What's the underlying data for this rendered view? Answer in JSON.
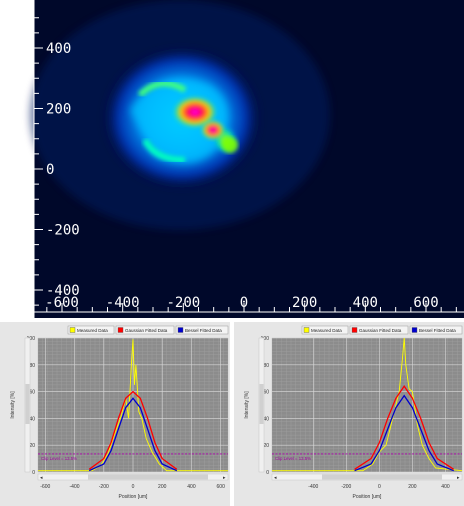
{
  "beam_profile": {
    "x_axis": {
      "labels": [
        "-600",
        "-400",
        "-200",
        "0",
        "200",
        "400",
        "600"
      ],
      "values": [
        -600,
        -400,
        -200,
        0,
        200,
        400,
        600
      ]
    },
    "y_axis": {
      "labels": [
        "400",
        "200",
        "0",
        "-200",
        "-400"
      ],
      "values": [
        400,
        200,
        0,
        -200,
        -400
      ]
    },
    "colors": {
      "background": "#00082a",
      "tick": "#ffffff"
    }
  },
  "legend": {
    "measured": "Measured Data",
    "gaussian": "Gaussian Fitted Data",
    "bessel": "Bessel Fitted Data"
  },
  "chart_data": [
    {
      "type": "line",
      "xlabel": "Position [um]",
      "ylabel": "Intensity [%]",
      "xlim": [
        -650,
        650
      ],
      "ylim": [
        0,
        100
      ],
      "x_ticks": [
        "-600",
        "-400",
        "-200",
        "0",
        "200",
        "400",
        "600"
      ],
      "y_ticks": [
        "0",
        "20",
        "40",
        "60",
        "80",
        "100"
      ],
      "clip_level_label": "Clip Level = 13.5%",
      "clip_level": 13.5,
      "series": [
        {
          "name": "Measured Data",
          "color": "#ffff00",
          "x": [
            -650,
            -280,
            -220,
            -170,
            -120,
            -80,
            -50,
            -30,
            -10,
            0,
            10,
            20,
            40,
            60,
            90,
            130,
            180,
            230,
            650
          ],
          "y": [
            1,
            1,
            5,
            14,
            30,
            42,
            55,
            40,
            82,
            99,
            65,
            80,
            45,
            40,
            25,
            15,
            6,
            1,
            1
          ]
        },
        {
          "name": "Gaussian Fitted Data",
          "color": "#ff0000",
          "x": [
            -300,
            -200,
            -150,
            -100,
            -50,
            0,
            50,
            100,
            150,
            200,
            300
          ],
          "y": [
            2,
            10,
            22,
            40,
            55,
            60,
            55,
            40,
            22,
            10,
            2
          ]
        },
        {
          "name": "Bessel Fitted Data",
          "color": "#0000cc",
          "x": [
            -300,
            -200,
            -150,
            -100,
            -50,
            0,
            50,
            100,
            150,
            200,
            300
          ],
          "y": [
            1,
            6,
            16,
            32,
            48,
            55,
            48,
            32,
            16,
            6,
            1
          ]
        }
      ]
    },
    {
      "type": "line",
      "xlabel": "Position [um]",
      "ylabel": "Intensity [%]",
      "xlim": [
        -650,
        500
      ],
      "ylim": [
        0,
        100
      ],
      "x_ticks": [
        "-400",
        "-200",
        "0",
        "200",
        "400"
      ],
      "y_ticks": [
        "0",
        "20",
        "40",
        "60",
        "80",
        "100"
      ],
      "clip_level_label": "Clip Level = 13.5%",
      "clip_level": 13.5,
      "series": [
        {
          "name": "Measured Data",
          "color": "#ffff00",
          "x": [
            -650,
            -100,
            -40,
            0,
            40,
            70,
            100,
            120,
            140,
            150,
            160,
            180,
            200,
            230,
            260,
            300,
            340,
            500
          ],
          "y": [
            1,
            1,
            6,
            15,
            20,
            35,
            50,
            60,
            85,
            100,
            80,
            62,
            60,
            35,
            20,
            10,
            3,
            1
          ]
        },
        {
          "name": "Gaussian Fitted Data",
          "color": "#ff0000",
          "x": [
            -150,
            -50,
            0,
            50,
            100,
            150,
            200,
            250,
            300,
            350,
            450
          ],
          "y": [
            2,
            10,
            22,
            40,
            55,
            64,
            55,
            40,
            22,
            10,
            2
          ]
        },
        {
          "name": "Bessel Fitted Data",
          "color": "#0000cc",
          "x": [
            -150,
            -50,
            0,
            50,
            100,
            150,
            200,
            250,
            300,
            350,
            450
          ],
          "y": [
            1,
            6,
            16,
            32,
            48,
            57,
            48,
            32,
            16,
            6,
            1
          ]
        }
      ]
    }
  ]
}
